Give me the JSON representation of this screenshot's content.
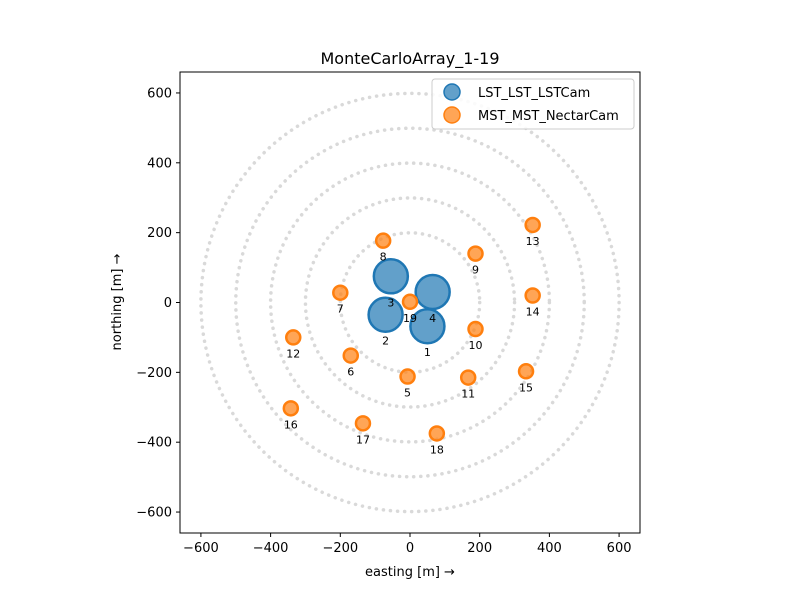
{
  "chart_data": {
    "type": "scatter",
    "title": "MonteCarloArray_1-19",
    "xlabel": "easting [m]  →",
    "ylabel": "northing [m]  →",
    "xlim": [
      -660,
      660
    ],
    "ylim": [
      -660,
      660
    ],
    "xticks": [
      -600,
      -400,
      -200,
      0,
      200,
      400,
      600
    ],
    "yticks": [
      -600,
      -400,
      -200,
      0,
      200,
      400,
      600
    ],
    "xtick_labels": [
      "−600",
      "−400",
      "−200",
      "0",
      "200",
      "400",
      "600"
    ],
    "ytick_labels": [
      "−600",
      "−400",
      "−200",
      "0",
      "200",
      "400",
      "600"
    ],
    "grid": false,
    "legend_position": "top-right",
    "background_circles": {
      "radii": [
        200,
        300,
        400,
        500,
        600
      ],
      "color": "#d9d9d9"
    },
    "series": [
      {
        "name": "LST_LST_LSTCam",
        "color": "#1f77b4",
        "marker_scale": "large",
        "points": [
          {
            "label": "1",
            "x": 50,
            "y": -68
          },
          {
            "label": "2",
            "x": -70,
            "y": -35
          },
          {
            "label": "3",
            "x": -55,
            "y": 75
          },
          {
            "label": "4",
            "x": 65,
            "y": 30
          }
        ]
      },
      {
        "name": "MST_MST_NectarCam",
        "color": "#ff7f0e",
        "marker_scale": "small",
        "points": [
          {
            "label": "5",
            "x": -7,
            "y": -212
          },
          {
            "label": "6",
            "x": -170,
            "y": -152
          },
          {
            "label": "7",
            "x": -200,
            "y": 28
          },
          {
            "label": "8",
            "x": -77,
            "y": 177
          },
          {
            "label": "9",
            "x": 188,
            "y": 140
          },
          {
            "label": "10",
            "x": 188,
            "y": -76
          },
          {
            "label": "11",
            "x": 167,
            "y": -215
          },
          {
            "label": "12",
            "x": -335,
            "y": -100
          },
          {
            "label": "13",
            "x": 352,
            "y": 222
          },
          {
            "label": "14",
            "x": 352,
            "y": 20
          },
          {
            "label": "15",
            "x": 333,
            "y": -197
          },
          {
            "label": "16",
            "x": -342,
            "y": -303
          },
          {
            "label": "17",
            "x": -135,
            "y": -346
          },
          {
            "label": "18",
            "x": 77,
            "y": -375
          },
          {
            "label": "19",
            "x": 0,
            "y": 2
          }
        ]
      }
    ]
  }
}
